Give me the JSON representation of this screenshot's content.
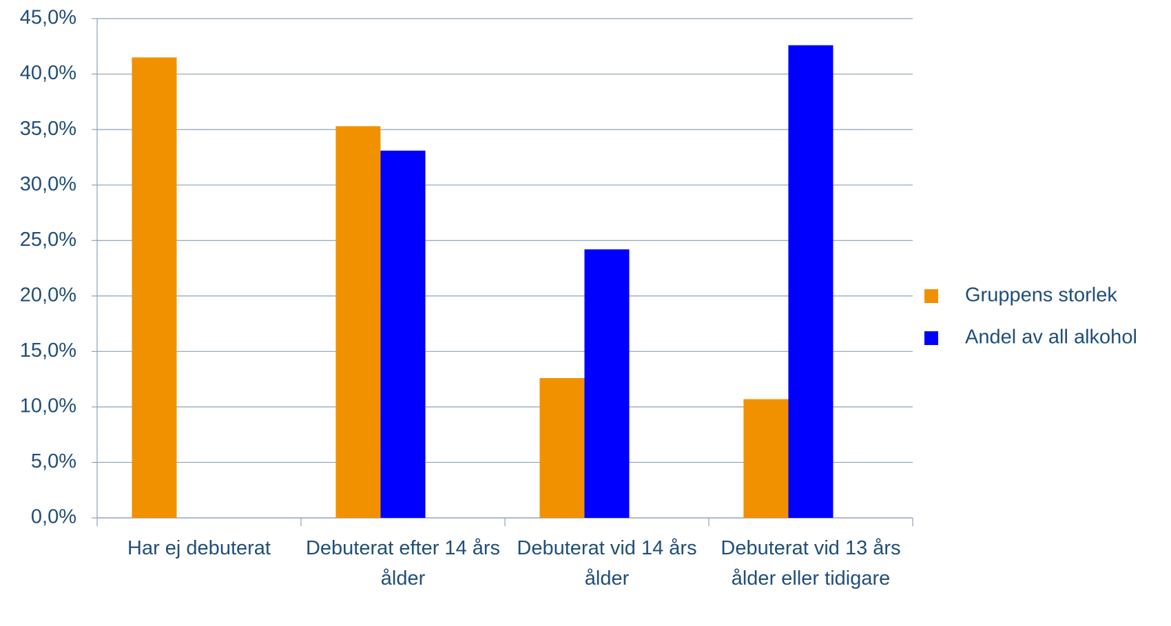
{
  "chart_data": {
    "type": "bar",
    "categories": [
      "Har ej debuterat",
      "Debuterat efter 14 års ålder",
      "Debuterat vid 14 års ålder",
      "Debuterat vid 13 års ålder eller tidigare"
    ],
    "series": [
      {
        "name": "Gruppens storlek",
        "color": "#f29100",
        "values": [
          41.5,
          35.3,
          12.6,
          10.7
        ]
      },
      {
        "name": "Andel av all alkohol",
        "color": "#0000ff",
        "values": [
          null,
          33.1,
          24.2,
          42.6
        ]
      }
    ],
    "ylim": [
      0,
      45
    ],
    "yticks": [
      {
        "value": 0,
        "label": "0,0%"
      },
      {
        "value": 5,
        "label": "5,0%"
      },
      {
        "value": 10,
        "label": "10,0%"
      },
      {
        "value": 15,
        "label": "15,0%"
      },
      {
        "value": 20,
        "label": "20,0%"
      },
      {
        "value": 25,
        "label": "25,0%"
      },
      {
        "value": 30,
        "label": "30,0%"
      },
      {
        "value": 35,
        "label": "35,0%"
      },
      {
        "value": 40,
        "label": "40,0%"
      },
      {
        "value": 45,
        "label": "45,0%"
      }
    ],
    "grid": true,
    "legend": "right"
  }
}
